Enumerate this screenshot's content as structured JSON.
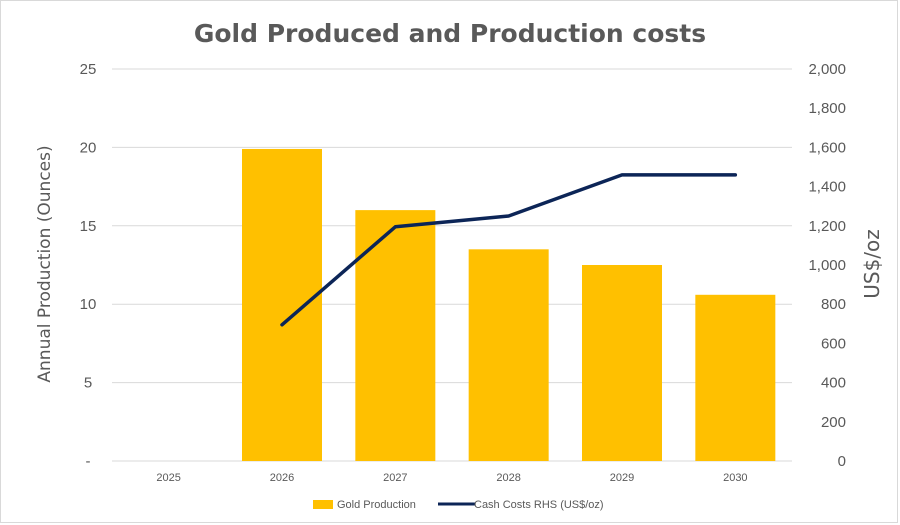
{
  "chart_data": {
    "type": "bar",
    "title": "Gold Produced and Production costs",
    "categories": [
      "2025",
      "2026",
      "2027",
      "2028",
      "2029",
      "2030"
    ],
    "ylabel": "Annual Production (Ounces)",
    "y2label": "US$/oz",
    "ylim": [
      0,
      25
    ],
    "y2lim": [
      0,
      2000
    ],
    "y_ticks": [
      "-",
      "5",
      "10",
      "15",
      "20",
      "25"
    ],
    "y2_ticks": [
      "0",
      "200",
      "400",
      "600",
      "800",
      "1,000",
      "1,200",
      "1,400",
      "1,600",
      "1,800",
      "2,000"
    ],
    "grid": true,
    "legend_position": "bottom",
    "series": [
      {
        "name": "Gold Production",
        "type": "bar",
        "axis": "left",
        "color": "#ffc000",
        "values": [
          null,
          19.9,
          16.0,
          13.5,
          12.5,
          10.6
        ]
      },
      {
        "name": "Cash Costs RHS (US$/oz)",
        "type": "line",
        "axis": "right",
        "color": "#0c2557",
        "values": [
          null,
          695,
          1195,
          1250,
          1460,
          1460
        ]
      }
    ]
  }
}
